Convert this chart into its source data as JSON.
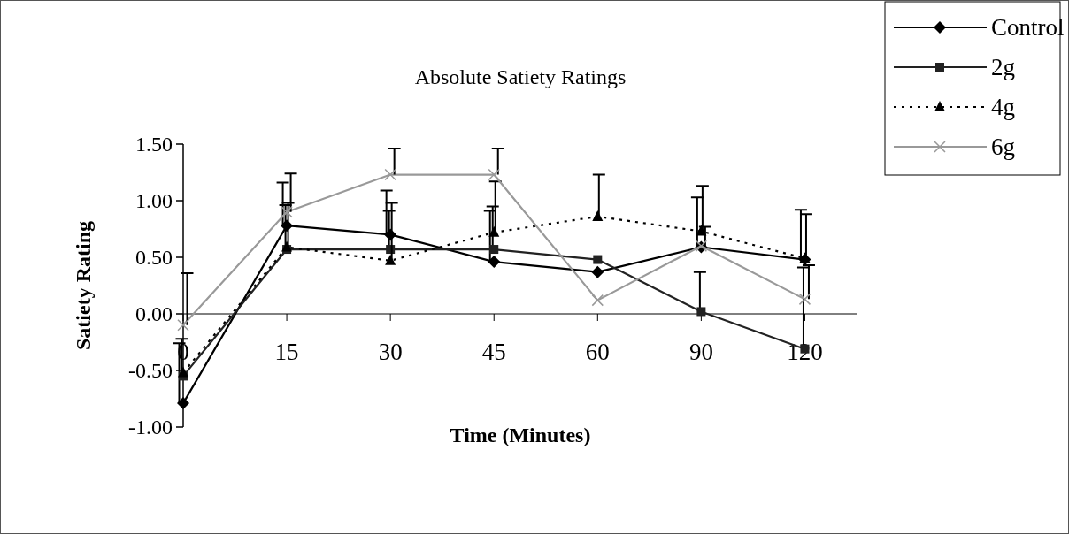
{
  "chart_data": {
    "type": "line",
    "title": "Absolute Satiety Ratings",
    "xlabel": "Time (Minutes)",
    "ylabel": "Satiety Rating",
    "categories": [
      "0",
      "15",
      "30",
      "45",
      "60",
      "90",
      "120"
    ],
    "ylim": [
      -1,
      1.5
    ],
    "yticks": [
      {
        "value": -1,
        "label": "-1.00"
      },
      {
        "value": -0.5,
        "label": "-0.50"
      },
      {
        "value": 0,
        "label": "0.00"
      },
      {
        "value": 0.5,
        "label": "0.50"
      },
      {
        "value": 1,
        "label": "1.00"
      },
      {
        "value": 1.5,
        "label": "1.50"
      }
    ],
    "legend": "top right",
    "grid": false,
    "series": [
      {
        "name": "Control",
        "color": "#000000",
        "marker": "diamond",
        "line_style": "solid",
        "values": [
          -0.79,
          0.78,
          0.7,
          0.46,
          0.37,
          0.59,
          0.48
        ],
        "errors": [
          [
            -0.79,
            -0.26
          ],
          [
            0.78,
            1.16
          ],
          [
            0.7,
            1.09
          ],
          [
            0.46,
            0.91
          ],
          null,
          [
            0.59,
            1.03
          ],
          [
            0.48,
            0.92
          ]
        ]
      },
      {
        "name": "2g",
        "color": "#222222",
        "marker": "square",
        "line_style": "solid",
        "values": [
          -0.55,
          0.57,
          0.57,
          0.57,
          0.48,
          0.02,
          -0.31
        ],
        "errors": [
          [
            -0.55,
            -0.22
          ],
          [
            0.57,
            0.96
          ],
          [
            0.57,
            0.91
          ],
          [
            0.57,
            0.95
          ],
          null,
          [
            0.02,
            0.37
          ],
          [
            -0.31,
            0.41
          ]
        ]
      },
      {
        "name": "4g",
        "color": "#000000",
        "marker": "triangle",
        "line_style": "dotted",
        "values": [
          -0.52,
          0.59,
          0.47,
          0.72,
          0.86,
          0.73,
          0.49
        ],
        "errors": [
          null,
          [
            0.59,
            0.98
          ],
          [
            0.47,
            0.98
          ],
          [
            0.72,
            1.17
          ],
          [
            0.86,
            1.23
          ],
          [
            0.73,
            1.13
          ],
          [
            0.49,
            0.88
          ]
        ]
      },
      {
        "name": "6g",
        "color": "#999999",
        "marker": "cross",
        "line_style": "solid",
        "values": [
          -0.1,
          0.9,
          1.23,
          1.23,
          0.12,
          0.6,
          0.13
        ],
        "errors": [
          [
            -0.1,
            0.36
          ],
          [
            0.9,
            1.24
          ],
          [
            1.23,
            1.46
          ],
          [
            1.23,
            1.46
          ],
          null,
          [
            0.6,
            0.77
          ],
          [
            0.13,
            0.43
          ]
        ]
      }
    ]
  }
}
